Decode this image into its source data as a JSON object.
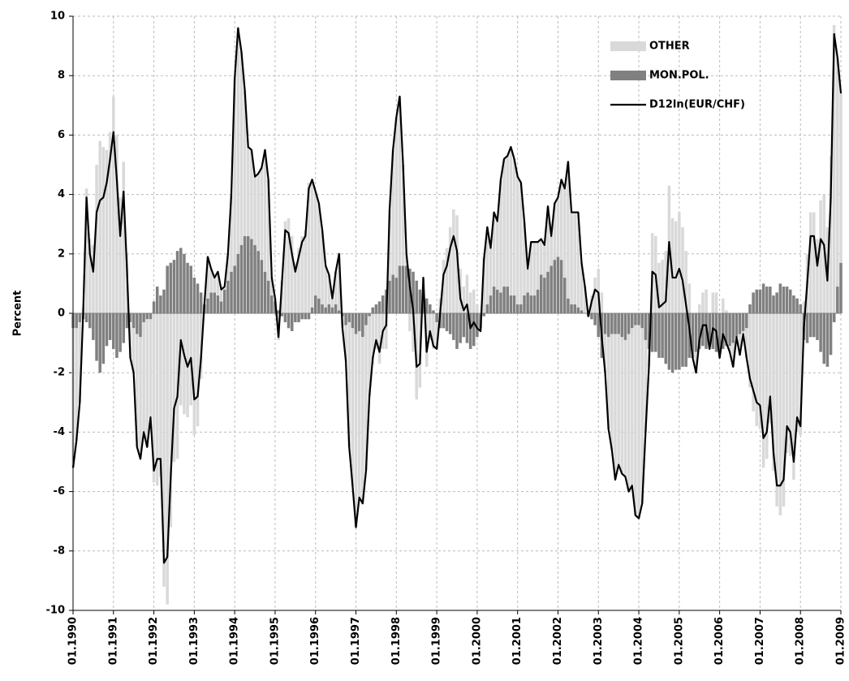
{
  "chart_data": {
    "type": "stacked-bar-line",
    "y_label": "Percent",
    "ylim": [
      -10,
      10
    ],
    "yticks": [
      -10,
      -8,
      -6,
      -4,
      -2,
      0,
      2,
      4,
      6,
      8,
      10
    ],
    "grid": true,
    "legend": "top-right",
    "categories": [
      "01.1990",
      null,
      null,
      null,
      null,
      null,
      null,
      null,
      null,
      null,
      null,
      null,
      "01.1991",
      null,
      null,
      null,
      null,
      null,
      null,
      null,
      null,
      null,
      null,
      null,
      "01.1992",
      null,
      null,
      null,
      null,
      null,
      null,
      null,
      null,
      null,
      null,
      null,
      "01.1993",
      null,
      null,
      null,
      null,
      null,
      null,
      null,
      null,
      null,
      null,
      null,
      "01.1994",
      null,
      null,
      null,
      null,
      null,
      null,
      null,
      null,
      null,
      null,
      null,
      "01.1995",
      null,
      null,
      null,
      null,
      null,
      null,
      null,
      null,
      null,
      null,
      null,
      "01.1996",
      null,
      null,
      null,
      null,
      null,
      null,
      null,
      null,
      null,
      null,
      null,
      "01.1997",
      null,
      null,
      null,
      null,
      null,
      null,
      null,
      null,
      null,
      null,
      null,
      "01.1998",
      null,
      null,
      null,
      null,
      null,
      null,
      null,
      null,
      null,
      null,
      null,
      "01.1999",
      null,
      null,
      null,
      null,
      null,
      null,
      null,
      null,
      null,
      null,
      null,
      "01.2000",
      null,
      null,
      null,
      null,
      null,
      null,
      null,
      null,
      null,
      null,
      null,
      "01.2001",
      null,
      null,
      null,
      null,
      null,
      null,
      null,
      null,
      null,
      null,
      null,
      "01.2002",
      null,
      null,
      null,
      null,
      null,
      null,
      null,
      null,
      null,
      null,
      null,
      "01.2003",
      null,
      null,
      null,
      null,
      null,
      null,
      null,
      null,
      null,
      null,
      null,
      "01.2004",
      null,
      null,
      null,
      null,
      null,
      null,
      null,
      null,
      null,
      null,
      null,
      "01.2005",
      null,
      null,
      null,
      null,
      null,
      null,
      null,
      null,
      null,
      null,
      null,
      "01.2006",
      null,
      null,
      null,
      null,
      null,
      null,
      null,
      null,
      null,
      null,
      null,
      "01.2007",
      null,
      null,
      null,
      null,
      null,
      null,
      null,
      null,
      null,
      null,
      null,
      "01.2008",
      null,
      null,
      null,
      null,
      null,
      null,
      null,
      null,
      null,
      null,
      null,
      "01.2009"
    ],
    "series": [
      {
        "name": "OTHER",
        "kind": "bar",
        "color": "#d9d9d9",
        "values": [
          -4.7,
          -3.8,
          -2.7,
          0.2,
          4.2,
          2.5,
          2.3,
          5.0,
          5.8,
          5.6,
          5.5,
          6.1,
          7.3,
          6.0,
          3.9,
          5.1,
          2.0,
          -1.2,
          -1.5,
          -3.8,
          -4.1,
          -3.7,
          -4.3,
          -3.3,
          -5.7,
          -5.8,
          -5.5,
          -9.2,
          -9.8,
          -7.2,
          -5.0,
          -4.9,
          -3.1,
          -3.4,
          -3.5,
          -3.1,
          -4.1,
          -3.8,
          -2.2,
          0,
          1.4,
          0.8,
          0.5,
          0.8,
          0.4,
          0.1,
          0.9,
          2.6,
          6.3,
          7.6,
          6.5,
          4.9,
          3.0,
          3.0,
          2.3,
          2.6,
          3.1,
          4.1,
          3.4,
          0.6,
          0.1,
          -0.9,
          1.1,
          3.1,
          3.2,
          2.6,
          1.7,
          2.2,
          2.6,
          2.8,
          4.4,
          4.3,
          3.5,
          3.2,
          2.5,
          1.4,
          1.0,
          0.3,
          1.1,
          1.9,
          -0.4,
          -1.2,
          -4.2,
          -5.3,
          -6.5,
          -5.6,
          -5.6,
          -4.9,
          -2.7,
          -1.7,
          -1.2,
          -1.7,
          -1.2,
          -1.2,
          2.4,
          4.2,
          5.4,
          5.7,
          3.4,
          0.4,
          -0.6,
          -1.3,
          -2.9,
          -2.5,
          0.6,
          -1.8,
          -0.9,
          -1.2,
          -0.9,
          0.5,
          1.8,
          2.2,
          2.9,
          3.5,
          3.3,
          1.5,
          0.9,
          1.3,
          0.7,
          0.8,
          0.3,
          -0.1,
          1.9,
          2.6,
          1.6,
          2.5,
          2.3,
          3.8,
          4.3,
          4.4,
          5.0,
          4.6,
          4.3,
          4.1,
          2.5,
          0.8,
          1.8,
          1.8,
          1.6,
          1.2,
          1.1,
          2.2,
          1.0,
          1.9,
          2.0,
          2.7,
          3.0,
          4.6,
          3.1,
          3.1,
          3.2,
          1.6,
          0.9,
          0,
          0.6,
          1.2,
          1.5,
          0.7,
          -1.3,
          -3.1,
          -3.9,
          -4.9,
          -4.4,
          -4.6,
          -4.6,
          -5.3,
          -5.3,
          -6.4,
          -6.5,
          -5.9,
          -3.1,
          -0.6,
          2.7,
          2.6,
          1.7,
          1.8,
          2.1,
          4.3,
          3.2,
          3.1,
          3.4,
          2.9,
          2.1,
          1.0,
          0,
          -0.7,
          0.3,
          0.7,
          0.8,
          -0.1,
          0.7,
          0.7,
          -0.2,
          0.5,
          0.1,
          -0.2,
          -0.8,
          0,
          -0.7,
          -0.1,
          -1.0,
          -2.5,
          -3.3,
          -3.8,
          -3.9,
          -5.2,
          -4.9,
          -3.7,
          -5.3,
          -6.5,
          -6.8,
          -6.5,
          -4.7,
          -4.8,
          -5.6,
          -4.0,
          -4.1,
          0.4,
          2.0,
          3.4,
          3.4,
          2.5,
          3.8,
          4.0,
          2.9,
          5.3,
          9.7,
          7.7,
          5.7
        ]
      },
      {
        "name": "MON.POL.",
        "kind": "bar",
        "color": "#808080",
        "values": [
          -0.5,
          -0.5,
          -0.3,
          -0.2,
          -0.3,
          -0.5,
          -0.9,
          -1.6,
          -2.0,
          -1.7,
          -1.1,
          -0.9,
          -1.2,
          -1.5,
          -1.3,
          -1.0,
          -0.5,
          -0.3,
          -0.5,
          -0.7,
          -0.8,
          -0.3,
          -0.2,
          -0.2,
          0.4,
          0.9,
          0.6,
          0.8,
          1.6,
          1.7,
          1.8,
          2.1,
          2.2,
          2.0,
          1.7,
          1.6,
          1.2,
          1.0,
          0.7,
          0.3,
          0.5,
          0.7,
          0.7,
          0.6,
          0.4,
          0.8,
          1.1,
          1.4,
          1.6,
          2.0,
          2.3,
          2.6,
          2.6,
          2.5,
          2.3,
          2.1,
          1.8,
          1.4,
          1.1,
          0.6,
          0.4,
          0.1,
          -0.1,
          -0.3,
          -0.5,
          -0.6,
          -0.3,
          -0.3,
          -0.2,
          -0.2,
          -0.2,
          0.2,
          0.6,
          0.5,
          0.3,
          0.2,
          0.3,
          0.2,
          0.3,
          0.1,
          -0.1,
          -0.4,
          -0.3,
          -0.5,
          -0.7,
          -0.6,
          -0.8,
          -0.4,
          -0.1,
          0.2,
          0.3,
          0.4,
          0.6,
          0.8,
          1.1,
          1.3,
          1.2,
          1.6,
          1.6,
          1.6,
          1.5,
          1.4,
          1.1,
          0.8,
          0.6,
          0.5,
          0.3,
          0.1,
          -0.3,
          -0.5,
          -0.5,
          -0.6,
          -0.7,
          -0.9,
          -1.2,
          -1.0,
          -0.8,
          -1.0,
          -1.2,
          -1.1,
          -0.8,
          -0.5,
          -0.1,
          0.3,
          0.6,
          0.9,
          0.8,
          0.7,
          0.9,
          0.9,
          0.6,
          0.6,
          0.3,
          0.3,
          0.6,
          0.7,
          0.6,
          0.6,
          0.8,
          1.3,
          1.2,
          1.4,
          1.6,
          1.8,
          1.9,
          1.8,
          1.2,
          0.5,
          0.3,
          0.3,
          0.2,
          0.1,
          0,
          -0.1,
          -0.2,
          -0.4,
          -0.8,
          -1.5,
          -0.7,
          -0.8,
          -0.7,
          -0.7,
          -0.7,
          -0.8,
          -0.9,
          -0.7,
          -0.5,
          -0.4,
          -0.4,
          -0.5,
          -0.9,
          -1.2,
          -1.3,
          -1.3,
          -1.5,
          -1.5,
          -1.7,
          -1.9,
          -2.0,
          -1.9,
          -1.9,
          -1.8,
          -1.8,
          -1.5,
          -1.5,
          -1.3,
          -1.2,
          -1.1,
          -1.2,
          -1.1,
          -1.2,
          -1.3,
          -1.3,
          -1.2,
          -1.1,
          -1.1,
          -1.0,
          -0.8,
          -0.7,
          -0.6,
          -0.5,
          0.3,
          0.7,
          0.8,
          0.8,
          1.0,
          0.9,
          0.9,
          0.6,
          0.7,
          1.0,
          0.9,
          0.9,
          0.8,
          0.6,
          0.5,
          0.3,
          -0.9,
          -1.0,
          -0.8,
          -0.8,
          -0.9,
          -1.3,
          -1.7,
          -1.8,
          -1.4,
          -0.3,
          0.9,
          1.7
        ]
      },
      {
        "name": "D12ln(EUR/CHF)",
        "kind": "line",
        "color": "#000000",
        "values": [
          -5.2,
          -4.3,
          -3,
          0,
          3.9,
          2,
          1.4,
          3.4,
          3.8,
          3.9,
          4.4,
          5.2,
          6.1,
          4.5,
          2.6,
          4.1,
          1.5,
          -1.5,
          -2,
          -4.5,
          -4.9,
          -4.0,
          -4.5,
          -3.5,
          -5.3,
          -4.9,
          -4.9,
          -8.4,
          -8.2,
          -5.5,
          -3.2,
          -2.8,
          -0.9,
          -1.4,
          -1.8,
          -1.5,
          -2.9,
          -2.8,
          -1.5,
          0.3,
          1.9,
          1.5,
          1.2,
          1.4,
          0.8,
          0.9,
          2.0,
          4.0,
          7.9,
          9.6,
          8.8,
          7.5,
          5.6,
          5.5,
          4.6,
          4.7,
          4.9,
          5.5,
          4.5,
          1.2,
          0.5,
          -0.8,
          1.0,
          2.8,
          2.7,
          2.0,
          1.4,
          1.9,
          2.4,
          2.6,
          4.2,
          4.5,
          4.1,
          3.7,
          2.8,
          1.6,
          1.3,
          0.5,
          1.4,
          2.0,
          -0.5,
          -1.6,
          -4.5,
          -5.8,
          -7.2,
          -6.2,
          -6.4,
          -5.3,
          -2.8,
          -1.5,
          -0.9,
          -1.3,
          -0.6,
          -0.4,
          3.5,
          5.5,
          6.6,
          7.3,
          5.0,
          2.0,
          0.9,
          0.1,
          -1.8,
          -1.7,
          1.2,
          -1.3,
          -0.6,
          -1.1,
          -1.2,
          0,
          1.3,
          1.6,
          2.2,
          2.6,
          2.1,
          0.5,
          0.1,
          0.3,
          -0.5,
          -0.3,
          -0.5,
          -0.6,
          1.8,
          2.9,
          2.2,
          3.4,
          3.1,
          4.5,
          5.2,
          5.3,
          5.6,
          5.2,
          4.6,
          4.4,
          3.1,
          1.5,
          2.4,
          2.4,
          2.4,
          2.5,
          2.3,
          3.6,
          2.6,
          3.7,
          3.9,
          4.5,
          4.2,
          5.1,
          3.4,
          3.4,
          3.4,
          1.7,
          0.9,
          -0.1,
          0.4,
          0.8,
          0.7,
          -0.8,
          -2.0,
          -3.9,
          -4.6,
          -5.6,
          -5.1,
          -5.4,
          -5.5,
          -6.0,
          -5.8,
          -6.8,
          -6.9,
          -6.4,
          -4.0,
          -1.8,
          1.4,
          1.3,
          0.2,
          0.3,
          0.4,
          2.4,
          1.2,
          1.2,
          1.5,
          1.1,
          0.3,
          -0.5,
          -1.5,
          -2.0,
          -0.9,
          -0.4,
          -0.4,
          -1.2,
          -0.5,
          -0.6,
          -1.5,
          -0.7,
          -1.0,
          -1.3,
          -1.8,
          -0.8,
          -1.4,
          -0.7,
          -1.5,
          -2.2,
          -2.6,
          -3.0,
          -3.1,
          -4.2,
          -4.0,
          -2.8,
          -4.7,
          -5.8,
          -5.8,
          -5.6,
          -3.8,
          -4.0,
          -5.0,
          -3.5,
          -3.8,
          -0.5,
          1.0,
          2.6,
          2.6,
          1.6,
          2.5,
          2.3,
          1.1,
          3.9,
          9.4,
          8.6,
          7.4
        ]
      }
    ]
  }
}
